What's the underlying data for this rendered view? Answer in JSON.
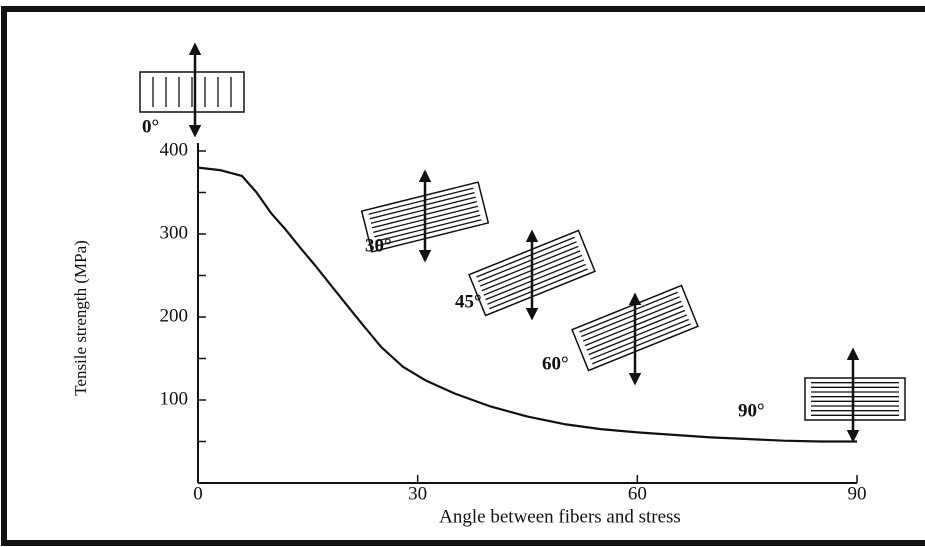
{
  "chart_data": {
    "type": "line",
    "x_label": "Angle between fibers and stress",
    "y_label": "Tensile strength (MPa)",
    "x": [
      0,
      3,
      6,
      8,
      10,
      12,
      14,
      16,
      18,
      20,
      22,
      25,
      28,
      31,
      35,
      40,
      45,
      50,
      55,
      60,
      65,
      70,
      75,
      80,
      85,
      90
    ],
    "y": [
      380,
      377,
      370,
      350,
      325,
      305,
      283,
      262,
      240,
      218,
      196,
      164,
      140,
      124,
      108,
      92,
      80,
      71,
      65,
      61,
      58,
      55,
      53,
      51,
      50,
      50
    ],
    "color": "#111111",
    "xlim": [
      0,
      90
    ],
    "ylim": [
      0,
      400
    ],
    "xticks": [
      0,
      30,
      60,
      90
    ],
    "yticks": [
      100,
      200,
      300,
      400
    ],
    "yminorticks": [
      50,
      150,
      250,
      350
    ],
    "annotations": [
      "0°",
      "30°",
      "45°",
      "60°",
      "90°"
    ]
  }
}
